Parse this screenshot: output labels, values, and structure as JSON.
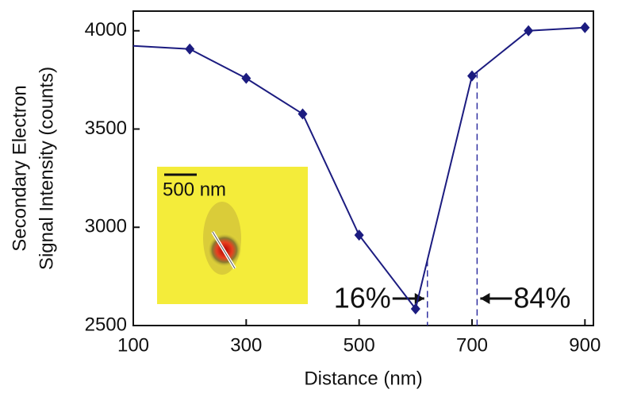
{
  "chart_data": {
    "type": "line",
    "y_label_lines": [
      "Secondary Electron",
      "Signal Intensity (counts)"
    ],
    "x_label": "Distance (nm)",
    "x": [
      100,
      200,
      300,
      400,
      500,
      600,
      700,
      800,
      900
    ],
    "series": [
      {
        "color": "#1c1c80",
        "values": [
          3923,
          3907,
          3758,
          3577,
          2960,
          2585,
          3770,
          4000,
          4016
        ]
      }
    ],
    "xlim": [
      100,
      915
    ],
    "xticks": [
      100,
      300,
      500,
      700,
      900
    ],
    "ylim": [
      2500,
      4100
    ],
    "yticks": [
      2500,
      3000,
      3500,
      4000
    ],
    "annotations": [
      {
        "text": "16%",
        "x": 621
      },
      {
        "text": "84%",
        "x": 709
      }
    ],
    "inset_scale_label": "500 nm"
  }
}
